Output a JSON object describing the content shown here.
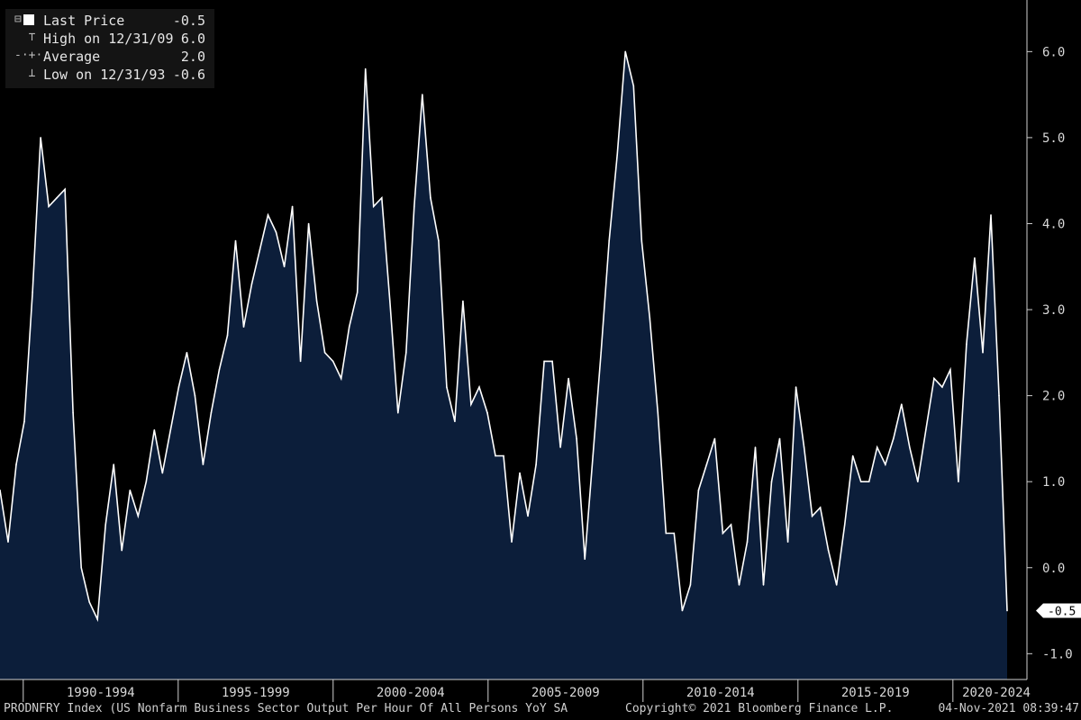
{
  "legend": {
    "items": [
      {
        "label": "Last Price",
        "value": "-0.5",
        "symbol": "box"
      },
      {
        "label": "High on 12/31/09",
        "value": "6.0",
        "symbol": "high"
      },
      {
        "label": "Average",
        "value": "2.0",
        "symbol": "avg"
      },
      {
        "label": "Low on 12/31/93",
        "value": "-0.6",
        "symbol": "low"
      }
    ]
  },
  "footer": {
    "source": "PRODNFRY Index (US Nonfarm Business Sector Output Per Hour Of All Persons YoY SA",
    "copyright": "Copyright© 2021 Bloomberg Finance L.P.",
    "timestamp": "04-Nov-2021 08:39:47"
  },
  "chart_data": {
    "type": "area",
    "x_tick_labels": [
      "1990-1994",
      "1995-1999",
      "2000-2004",
      "2005-2009",
      "2010-2014",
      "2015-2019",
      "2020-2024"
    ],
    "y_ticks": [
      -1.0,
      0.0,
      1.0,
      2.0,
      3.0,
      4.0,
      5.0,
      6.0
    ],
    "y_tick_labels": [
      "-1.0",
      "0.0",
      "1.0",
      "2.0",
      "3.0",
      "4.0",
      "5.0",
      "6.0"
    ],
    "ylim": [
      -1.3,
      6.6
    ],
    "last_value_label": "-0.5",
    "colors": {
      "fill": "#0c1e3a",
      "line": "#ffffff",
      "background": "#000000",
      "axis": "#cfcfcf"
    },
    "series": [
      {
        "values": [
          0.9,
          0.3,
          1.2,
          1.7,
          3.2,
          5.0,
          4.2,
          4.3,
          4.4,
          1.8,
          0.0,
          -0.4,
          -0.6,
          0.5,
          1.2,
          0.2,
          0.9,
          0.6,
          1.0,
          1.6,
          1.1,
          1.6,
          2.1,
          2.5,
          2.0,
          1.2,
          1.8,
          2.3,
          2.7,
          3.8,
          2.8,
          3.3,
          3.7,
          4.1,
          3.9,
          3.5,
          4.2,
          2.4,
          4.0,
          3.1,
          2.5,
          2.4,
          2.2,
          2.8,
          3.2,
          5.8,
          4.2,
          4.3,
          3.1,
          1.8,
          2.5,
          4.2,
          5.5,
          4.3,
          3.8,
          2.1,
          1.7,
          3.1,
          1.9,
          2.1,
          1.8,
          1.3,
          1.3,
          0.3,
          1.1,
          0.6,
          1.2,
          2.4,
          2.4,
          1.4,
          2.2,
          1.5,
          0.1,
          1.3,
          2.5,
          3.8,
          4.8,
          6.0,
          5.6,
          3.8,
          2.9,
          1.8,
          0.4,
          0.4,
          -0.5,
          -0.2,
          0.9,
          1.2,
          1.5,
          0.4,
          0.5,
          -0.2,
          0.3,
          1.4,
          -0.2,
          1.0,
          1.5,
          0.3,
          2.1,
          1.4,
          0.6,
          0.7,
          0.2,
          -0.2,
          0.5,
          1.3,
          1.0,
          1.0,
          1.4,
          1.2,
          1.5,
          1.9,
          1.4,
          1.0,
          1.6,
          2.2,
          2.1,
          2.3,
          1.0,
          2.6,
          3.6,
          2.5,
          4.1,
          2.0,
          -0.5
        ]
      }
    ]
  }
}
